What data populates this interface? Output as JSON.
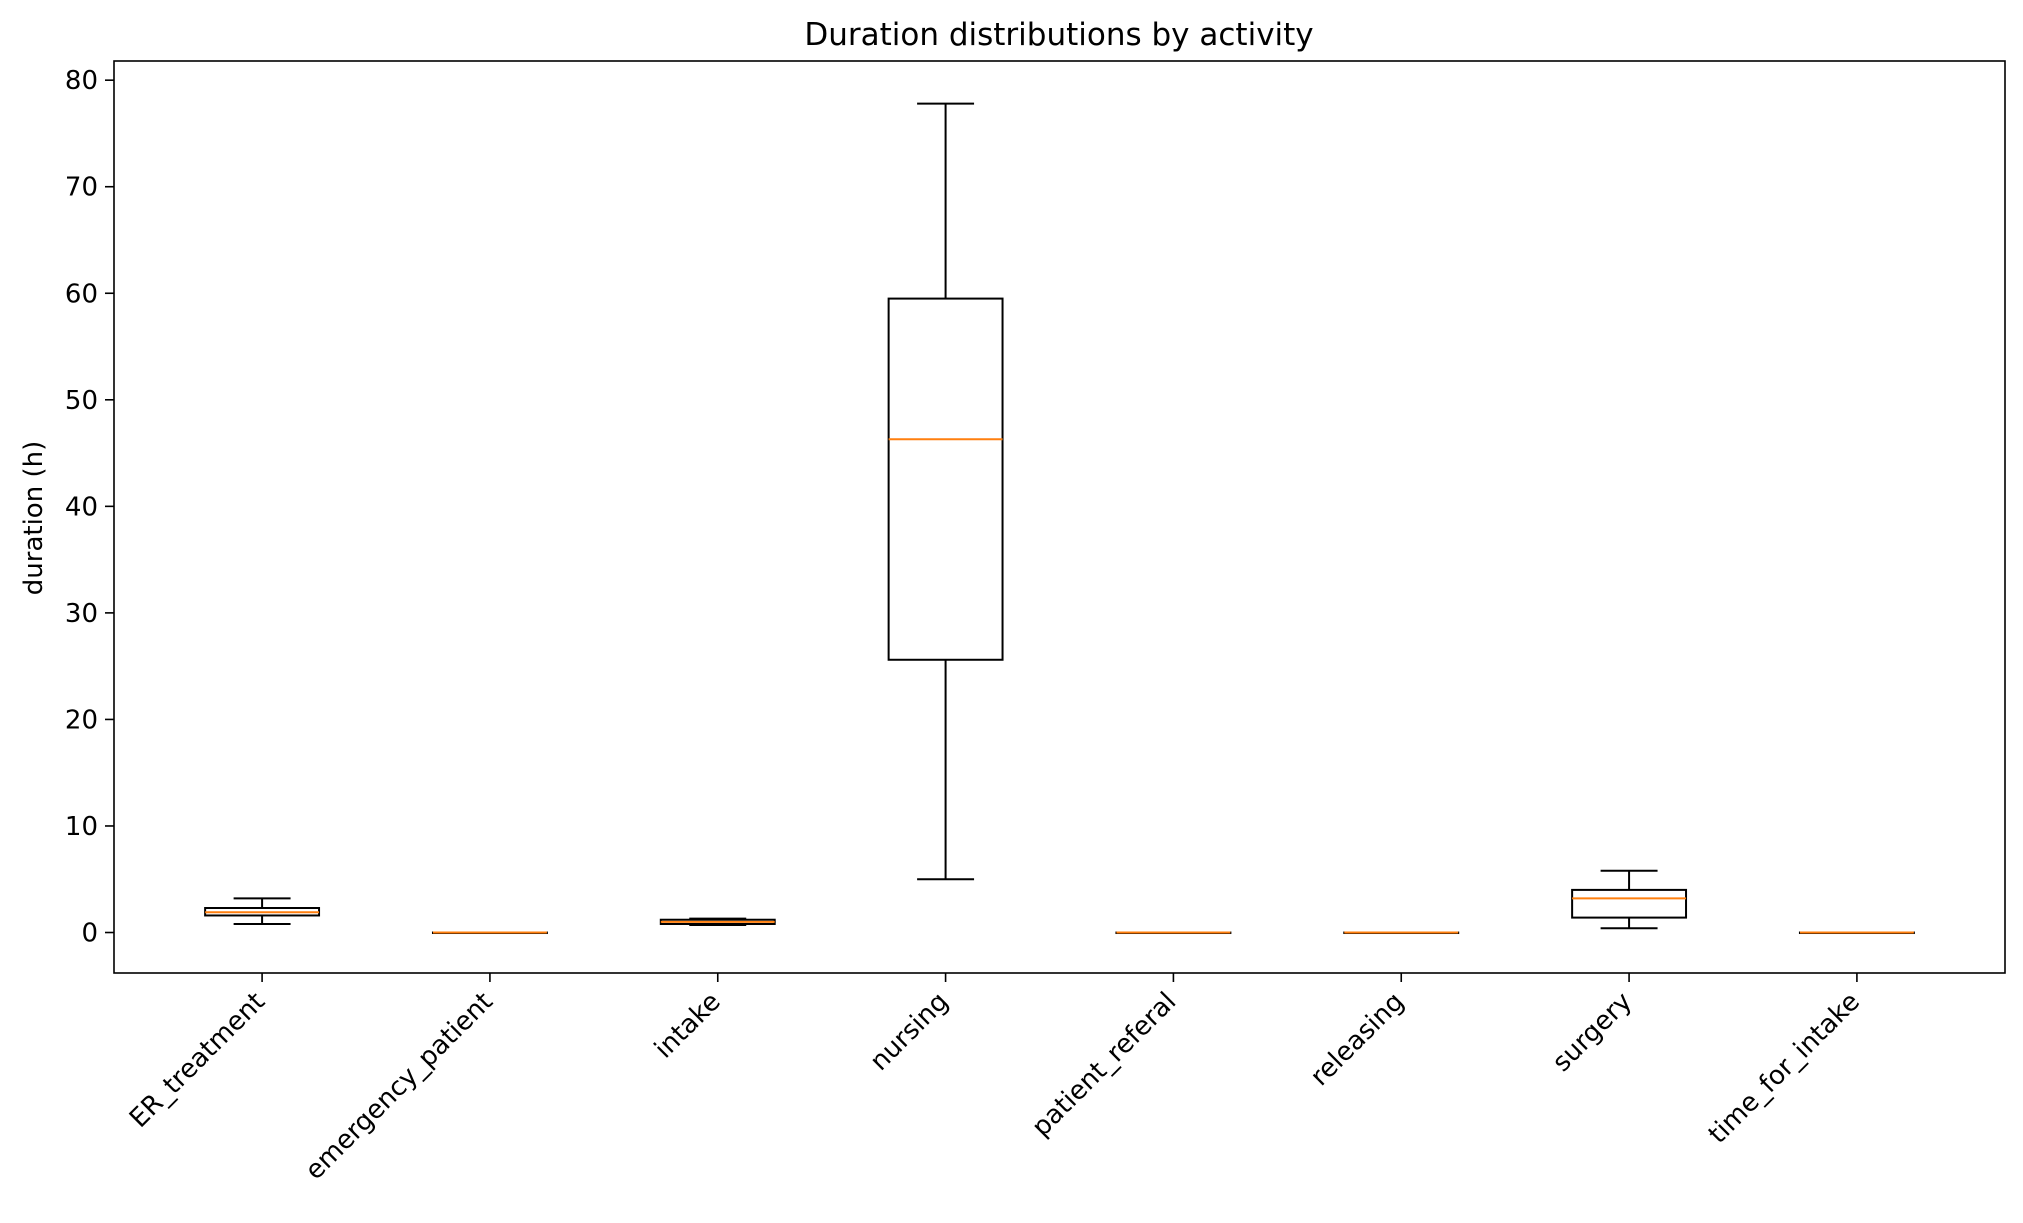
{
  "chart_data": {
    "type": "box",
    "title": "Duration distributions by activity",
    "xlabel": "",
    "ylabel": "duration (h)",
    "ylim": [
      -3.8,
      81.8
    ],
    "yticks": [
      0,
      10,
      20,
      30,
      40,
      50,
      60,
      70,
      80
    ],
    "grid": false,
    "categories": [
      "ER_treatment",
      "emergency_patient",
      "intake",
      "nursing",
      "patient_referal",
      "releasing",
      "surgery",
      "time_for_intake"
    ],
    "boxes": [
      {
        "whisker_low": 0.8,
        "q1": 1.6,
        "median": 1.9,
        "q3": 2.3,
        "whisker_high": 3.2
      },
      {
        "whisker_low": 0.0,
        "q1": 0.0,
        "median": 0.0,
        "q3": 0.0,
        "whisker_high": 0.0
      },
      {
        "whisker_low": 0.7,
        "q1": 0.8,
        "median": 1.0,
        "q3": 1.2,
        "whisker_high": 1.3
      },
      {
        "whisker_low": 5.0,
        "q1": 25.6,
        "median": 46.3,
        "q3": 59.5,
        "whisker_high": 77.8
      },
      {
        "whisker_low": 0.0,
        "q1": 0.0,
        "median": 0.0,
        "q3": 0.0,
        "whisker_high": 0.0
      },
      {
        "whisker_low": 0.0,
        "q1": 0.0,
        "median": 0.0,
        "q3": 0.0,
        "whisker_high": 0.0
      },
      {
        "whisker_low": 0.4,
        "q1": 1.4,
        "median": 3.2,
        "q3": 4.0,
        "whisker_high": 5.8
      },
      {
        "whisker_low": 0.0,
        "q1": 0.0,
        "median": 0.0,
        "q3": 0.0,
        "whisker_high": 0.0
      }
    ],
    "colors": {
      "box": "#000000",
      "median": "#ff7f0e",
      "background": "#ffffff"
    }
  }
}
